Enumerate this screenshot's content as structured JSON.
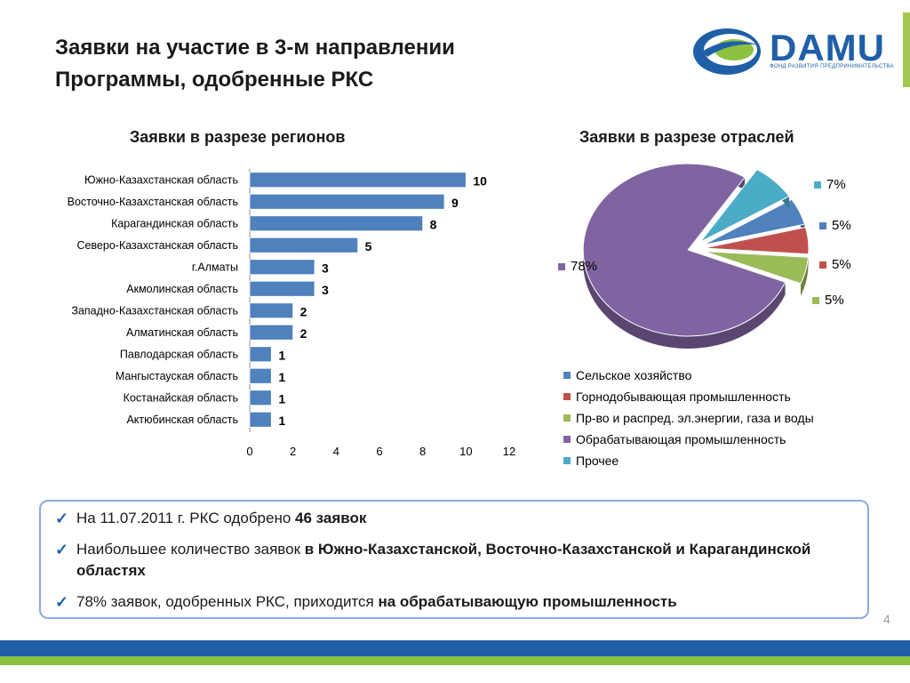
{
  "header": {
    "title_line1": "Заявки на участие в 3-м направлении",
    "title_line2": "Программы, одобренные РКС",
    "logo_text": "DAMU",
    "logo_subtext": "ФОНД РАЗВИТИЯ ПРЕДПРИНИМАТЕЛЬСТВА"
  },
  "chart_data": [
    {
      "type": "bar",
      "orientation": "horizontal",
      "title": "Заявки в разрезе регионов",
      "categories": [
        "Южно-Казахстанская область",
        "Восточно-Казахстанская область",
        "Карагандинская область",
        "Северо-Казахстанская область",
        "г.Алматы",
        "Акмолинская область",
        "Западно-Казахстанская область",
        "Алматинская область",
        "Павлодарская область",
        "Мангыстауская область",
        "Костанайская область",
        "Актюбинская область"
      ],
      "values": [
        10,
        9,
        8,
        5,
        3,
        3,
        2,
        2,
        1,
        1,
        1,
        1
      ],
      "xlim": [
        0,
        12
      ],
      "xticks": [
        "0",
        "2",
        "4",
        "6",
        "8",
        "10",
        "12"
      ],
      "bar_color": "#4f81bd"
    },
    {
      "type": "pie",
      "title": "Заявки в разрезе отраслей",
      "slices": [
        {
          "name": "Сельское хозяйство",
          "value": 5,
          "label": "5%",
          "color": "#4f81bd"
        },
        {
          "name": "Горнодобывающая промышленность",
          "value": 5,
          "label": "5%",
          "color": "#c0504d"
        },
        {
          "name": "Пр-во и распред. эл.энергии, газа и воды",
          "value": 5,
          "label": "5%",
          "color": "#9bbb59"
        },
        {
          "name": "Обрабатывающая промышленность",
          "value": 78,
          "label": "78%",
          "color": "#8064a2"
        },
        {
          "name": "Прочее",
          "value": 7,
          "label": "7%",
          "color": "#4bacc6"
        }
      ]
    }
  ],
  "summary": {
    "item1_prefix": "На 11.07.2011 г. РКС одобрено ",
    "item1_bold": "46 заявок",
    "item2_prefix": "Наибольшее количество заявок ",
    "item2_bold": "в Южно-Казахстанской, Восточно-Казахстанской и Карагандинской областях",
    "item3_prefix": "78% заявок, одобренных РКС, приходится ",
    "item3_bold": "на обрабатывающую промышленность",
    "check_symbol": "✓"
  },
  "page_number": "4"
}
